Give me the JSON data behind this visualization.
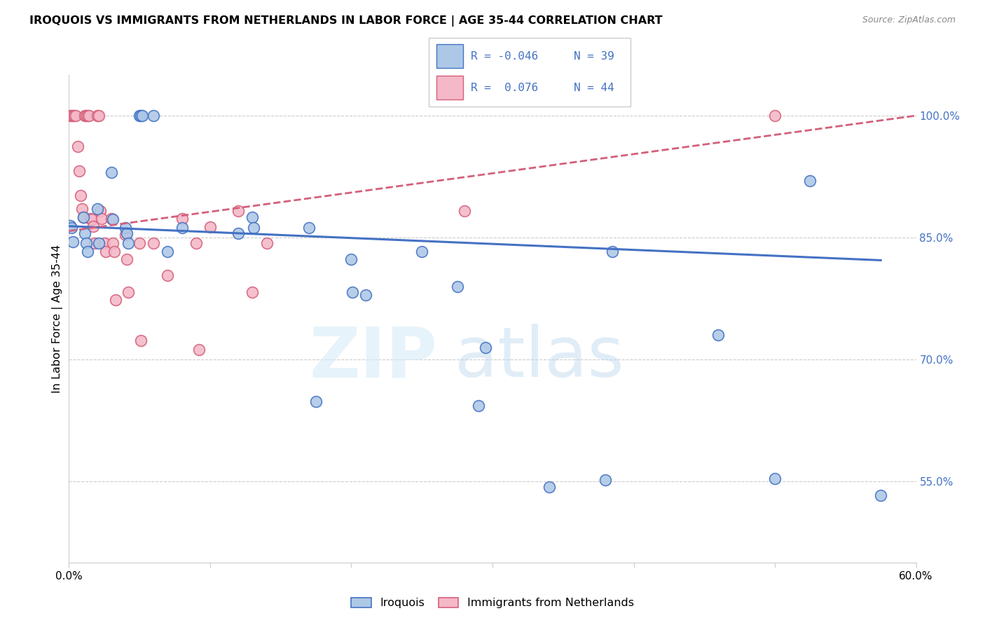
{
  "title": "IROQUOIS VS IMMIGRANTS FROM NETHERLANDS IN LABOR FORCE | AGE 35-44 CORRELATION CHART",
  "source": "Source: ZipAtlas.com",
  "ylabel": "In Labor Force | Age 35-44",
  "xlim": [
    0.0,
    0.6
  ],
  "ylim": [
    0.45,
    1.05
  ],
  "x_ticks": [
    0.0,
    0.1,
    0.2,
    0.3,
    0.4,
    0.5,
    0.6
  ],
  "x_tick_labels": [
    "0.0%",
    "",
    "",
    "",
    "",
    "",
    "60.0%"
  ],
  "y_ticks_right": [
    0.55,
    0.7,
    0.85,
    1.0
  ],
  "y_tick_labels_right": [
    "55.0%",
    "70.0%",
    "85.0%",
    "100.0%"
  ],
  "R_blue": -0.046,
  "N_blue": 39,
  "R_pink": 0.076,
  "N_pink": 44,
  "blue_face_color": "#adc8e6",
  "pink_face_color": "#f4b8c8",
  "blue_edge_color": "#4472c4",
  "pink_edge_color": "#d4607a",
  "blue_line_color": "#4472c4",
  "pink_line_color": "#d4607a",
  "text_color": "#4472c4",
  "grid_color": "#cccccc",
  "blue_scatter_x": [
    0.001,
    0.002,
    0.003,
    0.01,
    0.011,
    0.012,
    0.013,
    0.02,
    0.021,
    0.03,
    0.031,
    0.04,
    0.041,
    0.042,
    0.05,
    0.051,
    0.052,
    0.06,
    0.07,
    0.08,
    0.12,
    0.13,
    0.131,
    0.17,
    0.175,
    0.2,
    0.201,
    0.21,
    0.25,
    0.275,
    0.29,
    0.295,
    0.34,
    0.38,
    0.385,
    0.46,
    0.5,
    0.525,
    0.575
  ],
  "blue_scatter_y": [
    0.865,
    0.862,
    0.845,
    0.875,
    0.855,
    0.843,
    0.833,
    0.885,
    0.843,
    0.93,
    0.872,
    0.862,
    0.855,
    0.843,
    1.0,
    1.0,
    1.0,
    1.0,
    0.833,
    0.862,
    0.855,
    0.875,
    0.862,
    0.862,
    0.648,
    0.823,
    0.783,
    0.779,
    0.833,
    0.79,
    0.643,
    0.715,
    0.543,
    0.552,
    0.833,
    0.73,
    0.553,
    0.92,
    0.533
  ],
  "pink_scatter_x": [
    0.001,
    0.002,
    0.003,
    0.004,
    0.005,
    0.006,
    0.007,
    0.008,
    0.009,
    0.01,
    0.011,
    0.012,
    0.013,
    0.014,
    0.015,
    0.016,
    0.017,
    0.018,
    0.02,
    0.021,
    0.022,
    0.023,
    0.025,
    0.026,
    0.03,
    0.031,
    0.032,
    0.033,
    0.04,
    0.041,
    0.042,
    0.05,
    0.051,
    0.06,
    0.07,
    0.08,
    0.09,
    0.092,
    0.1,
    0.12,
    0.13,
    0.14,
    0.28,
    0.5
  ],
  "pink_scatter_y": [
    1.0,
    1.0,
    1.0,
    1.0,
    1.0,
    0.962,
    0.932,
    0.902,
    0.885,
    0.875,
    1.0,
    1.0,
    1.0,
    1.0,
    0.873,
    0.872,
    0.864,
    0.843,
    1.0,
    1.0,
    0.883,
    0.873,
    0.843,
    0.833,
    0.873,
    0.843,
    0.833,
    0.773,
    0.853,
    0.823,
    0.783,
    0.843,
    0.723,
    0.843,
    0.803,
    0.873,
    0.843,
    0.712,
    0.863,
    0.883,
    0.783,
    0.843,
    0.883,
    1.0
  ],
  "blue_line_x": [
    0.0,
    0.575
  ],
  "blue_line_y": [
    0.864,
    0.822
  ],
  "pink_line_x": [
    0.0,
    0.6
  ],
  "pink_line_y": [
    0.858,
    1.0
  ]
}
